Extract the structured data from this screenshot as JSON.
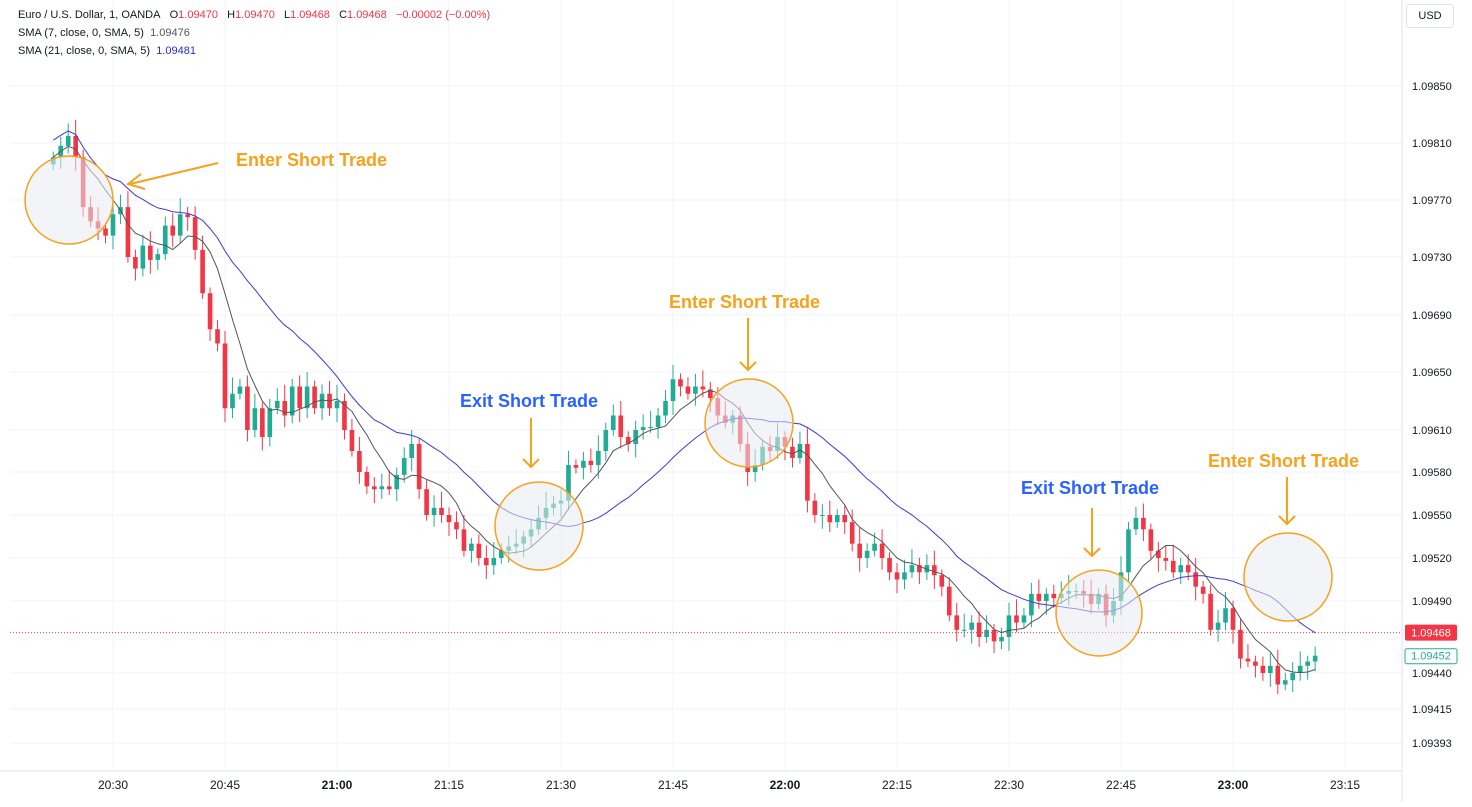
{
  "header": {
    "symbol": "Euro / U.S. Dollar, 1, OANDA",
    "ohlc": {
      "o_label": "O",
      "o": "1.09470",
      "h_label": "H",
      "h": "1.09470",
      "l_label": "L",
      "l": "1.09468",
      "c_label": "C",
      "c": "1.09468",
      "change": "−0.00002 (−0.00%)"
    },
    "sma7": {
      "label": "SMA (7, close, 0, SMA, 5)",
      "value": "1.09476"
    },
    "sma21": {
      "label": "SMA (21, close, 0, SMA, 5)",
      "value": "1.09481"
    }
  },
  "currency_button": "USD",
  "colors": {
    "up": "#22ab94",
    "down": "#f23645",
    "sma7": "#555555",
    "sma21": "#3b3bd6",
    "orange": "#f5a21c",
    "blue_text": "#2962ff"
  },
  "chart_data": {
    "type": "candlestick",
    "title": "Euro / U.S. Dollar, 1, OANDA",
    "y_ticks": [
      "1.09850",
      "1.09810",
      "1.09770",
      "1.09730",
      "1.09690",
      "1.09650",
      "1.09610",
      "1.09580",
      "1.09550",
      "1.09520",
      "1.09490",
      "1.09440",
      "1.09415",
      "1.09393"
    ],
    "x_ticks": [
      {
        "label": "20:30",
        "bold": false
      },
      {
        "label": "20:45",
        "bold": false
      },
      {
        "label": "21:00",
        "bold": true
      },
      {
        "label": "21:15",
        "bold": false
      },
      {
        "label": "21:30",
        "bold": false
      },
      {
        "label": "21:45",
        "bold": false
      },
      {
        "label": "22:00",
        "bold": true
      },
      {
        "label": "22:15",
        "bold": false
      },
      {
        "label": "22:30",
        "bold": false
      },
      {
        "label": "22:45",
        "bold": false
      },
      {
        "label": "23:00",
        "bold": true
      },
      {
        "label": "23:15",
        "bold": false
      }
    ],
    "start_time": "20:22",
    "candle_minutes": 1,
    "price_label_current": "1.09468",
    "price_label_last": "1.09452",
    "closes": [
      1.098,
      1.09808,
      1.09815,
      1.098,
      1.09765,
      1.09755,
      1.0975,
      1.09745,
      1.0976,
      1.09765,
      1.0973,
      1.09722,
      1.09738,
      1.09728,
      1.09732,
      1.09752,
      1.09745,
      1.0976,
      1.09758,
      1.09735,
      1.09705,
      1.0968,
      1.0967,
      1.09625,
      1.09635,
      1.0964,
      1.0961,
      1.09625,
      1.09605,
      1.09625,
      1.0963,
      1.0962,
      1.0964,
      1.09625,
      1.0964,
      1.09625,
      1.09635,
      1.09625,
      1.0963,
      1.0961,
      1.09595,
      1.0958,
      1.0957,
      1.09568,
      1.0957,
      1.09568,
      1.09578,
      1.0959,
      1.096,
      1.09568,
      1.0955,
      1.09555,
      1.0955,
      1.09545,
      1.0954,
      1.09525,
      1.0953,
      1.0952,
      1.09515,
      1.0952,
      1.09525,
      1.09528,
      1.0953,
      1.09535,
      1.0954,
      1.09548,
      1.09555,
      1.09558,
      1.0956,
      1.09585,
      1.09583,
      1.09588,
      1.09585,
      1.09595,
      1.0961,
      1.0962,
      1.09605,
      1.096,
      1.0961,
      1.09612,
      1.09612,
      1.0962,
      1.0963,
      1.09645,
      1.0964,
      1.09635,
      1.0964,
      1.09638,
      1.09632,
      1.0962,
      1.09615,
      1.0962,
      1.096,
      1.0958,
      1.09585,
      1.09598,
      1.09595,
      1.09605,
      1.09598,
      1.0959,
      1.096,
      1.0956,
      1.0955,
      1.0955,
      1.09545,
      1.0955,
      1.09545,
      1.0953,
      1.0952,
      1.09525,
      1.0953,
      1.0952,
      1.0951,
      1.09505,
      1.0951,
      1.09515,
      1.0951,
      1.09515,
      1.09508,
      1.095,
      1.0948,
      1.0947,
      1.0947,
      1.09475,
      1.09465,
      1.0947,
      1.09462,
      1.09465,
      1.0948,
      1.09475,
      1.0948,
      1.09495,
      1.0949,
      1.09495,
      1.09492,
      1.09495,
      1.09497,
      1.09497,
      1.09495,
      1.09488,
      1.09495,
      1.0948,
      1.0949,
      1.0951,
      1.0954,
      1.09548,
      1.0954,
      1.09525,
      1.0952,
      1.09518,
      1.0951,
      1.09515,
      1.0951,
      1.095,
      1.09495,
      1.0947,
      1.09475,
      1.09485,
      1.0947,
      1.0945,
      1.09448,
      1.09445,
      1.0944,
      1.09445,
      1.09432,
      1.09435,
      1.0944,
      1.09445,
      1.09448,
      1.09452
    ]
  }
}
